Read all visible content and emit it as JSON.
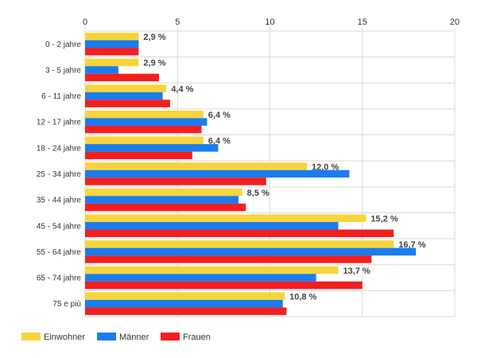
{
  "chart_data": {
    "type": "bar",
    "orientation": "horizontal",
    "categories": [
      "0 - 2 jahre",
      "3 - 5 jahre",
      "6 - 11 jahre",
      "12 - 17 jahre",
      "18 - 24 jahre",
      "25 - 34 jahre",
      "35 - 44 jahre",
      "45 - 54 jahre",
      "55 - 64 jahre",
      "65 - 74 jahre",
      "75 e più"
    ],
    "series": [
      {
        "name": "Einwohner",
        "color": "#f7d53a",
        "values": [
          2.9,
          2.9,
          4.4,
          6.4,
          6.4,
          12.0,
          8.5,
          15.2,
          16.7,
          13.7,
          10.8
        ]
      },
      {
        "name": "Männer",
        "color": "#1a7cf0",
        "values": [
          2.9,
          1.8,
          4.2,
          6.6,
          7.2,
          14.3,
          8.3,
          13.7,
          17.9,
          12.5,
          10.7
        ]
      },
      {
        "name": "Frauen",
        "color": "#f21f1f",
        "values": [
          2.9,
          4.0,
          4.6,
          6.3,
          5.8,
          9.8,
          8.7,
          16.7,
          15.5,
          15.0,
          10.9
        ]
      }
    ],
    "data_labels": [
      "2,9 %",
      "2,9 %",
      "4,4 %",
      "6,4 %",
      "6,4 %",
      "12,0 %",
      "8,5 %",
      "15,2 %",
      "16,7 %",
      "13,7 %",
      "10,8 %"
    ],
    "x_ticks": [
      "0",
      "5",
      "10",
      "15",
      "20"
    ],
    "xlim": [
      0,
      20
    ],
    "grid": true,
    "legend_position": "bottom-left",
    "title": "",
    "xlabel": "",
    "ylabel": ""
  }
}
